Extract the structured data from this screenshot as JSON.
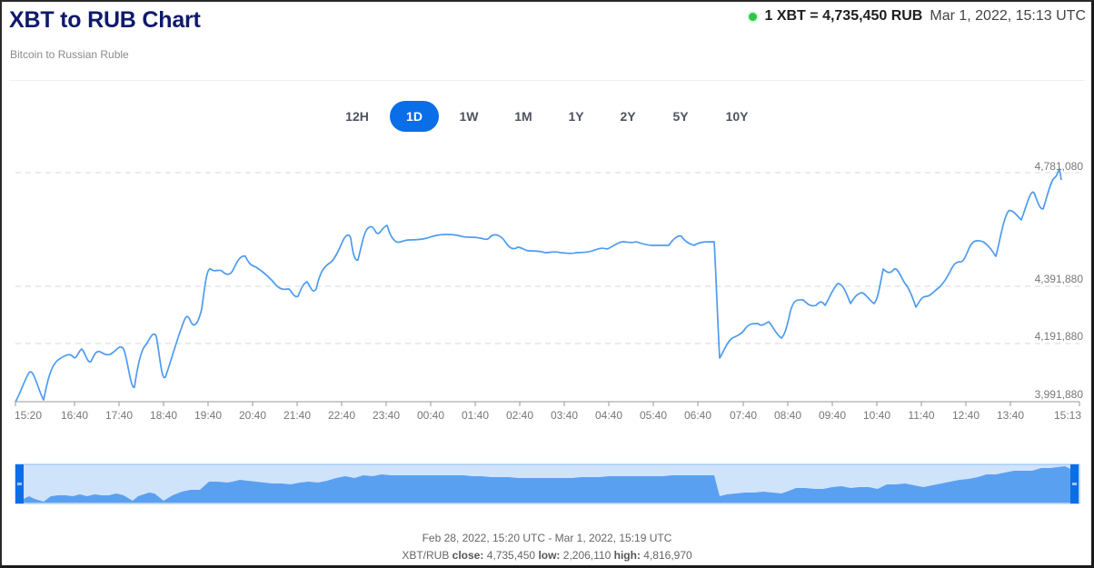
{
  "header": {
    "title": "XBT to RUB Chart",
    "subtitle": "Bitcoin to Russian Ruble",
    "rate_text": "1 XBT = 4,735,450 RUB",
    "rate_time": "Mar 1, 2022, 15:13 UTC",
    "status_color": "#2cc84a"
  },
  "ranges": [
    {
      "label": "12H",
      "active": false
    },
    {
      "label": "1D",
      "active": true
    },
    {
      "label": "1W",
      "active": false
    },
    {
      "label": "1M",
      "active": false
    },
    {
      "label": "1Y",
      "active": false
    },
    {
      "label": "2Y",
      "active": false
    },
    {
      "label": "5Y",
      "active": false
    },
    {
      "label": "10Y",
      "active": false
    }
  ],
  "footer": {
    "range_text": "Feb 28, 2022, 15:20 UTC - Mar 1, 2022, 15:19 UTC",
    "pair": "XBT/RUB",
    "close_label": "close:",
    "close_value": "4,735,450",
    "low_label": "low:",
    "low_value": "2,206,110",
    "high_label": "high:",
    "high_value": "4,816,970"
  },
  "colors": {
    "line": "#4d9bf0",
    "accent": "#0a6ee8",
    "navigator_bg": "#cfe3fb",
    "navigator_fill": "#5aa0f0",
    "title": "#0f1a6b"
  },
  "chart_data": {
    "type": "line",
    "title": "XBT to RUB Chart",
    "subtitle": "Bitcoin to Russian Ruble",
    "xlabel": "",
    "ylabel": "",
    "y_ticks": [
      3991880,
      4191880,
      4391880,
      4781080
    ],
    "y_tick_labels": [
      "3,991,880",
      "4,191,880",
      "4,391,880",
      "4,781,080"
    ],
    "ylim": [
      3991880,
      4781080
    ],
    "x_tick_labels": [
      "15:20",
      "16:40",
      "17:40",
      "18:40",
      "19:40",
      "20:40",
      "21:40",
      "22:40",
      "23:40",
      "00:40",
      "01:40",
      "02:40",
      "03:40",
      "04:40",
      "05:40",
      "06:40",
      "07:40",
      "08:40",
      "09:40",
      "10:40",
      "11:40",
      "12:40",
      "13:40",
      "15:13"
    ],
    "grid": "horizontal dashed",
    "legend": "none",
    "series": [
      {
        "name": "XBT/RUB",
        "x": [
          "15:20",
          "15:35",
          "15:50",
          "16:05",
          "16:20",
          "16:40",
          "16:55",
          "17:10",
          "17:25",
          "17:40",
          "17:55",
          "18:10",
          "18:25",
          "18:40",
          "18:55",
          "19:10",
          "19:25",
          "19:40",
          "19:55",
          "20:10",
          "20:25",
          "20:40",
          "20:55",
          "21:10",
          "21:25",
          "21:40",
          "21:55",
          "22:10",
          "22:25",
          "22:40",
          "22:55",
          "23:10",
          "23:25",
          "23:40",
          "00:00",
          "00:20",
          "00:40",
          "01:00",
          "01:20",
          "01:40",
          "02:00",
          "02:20",
          "02:40",
          "03:00",
          "03:20",
          "03:40",
          "04:00",
          "04:20",
          "04:40",
          "05:00",
          "05:20",
          "05:40",
          "06:00",
          "06:20",
          "06:40",
          "06:55",
          "07:00",
          "07:20",
          "07:40",
          "08:00",
          "08:20",
          "08:40",
          "09:00",
          "09:20",
          "09:40",
          "10:00",
          "10:20",
          "10:40",
          "11:00",
          "11:20",
          "11:40",
          "12:00",
          "12:20",
          "12:40",
          "13:00",
          "13:20",
          "13:40",
          "14:00",
          "14:20",
          "14:40",
          "15:00",
          "15:13"
        ],
        "values": [
          3991880,
          4080000,
          3995000,
          4150000,
          4140000,
          4165000,
          4170000,
          4170000,
          4040000,
          4195000,
          4210000,
          4060000,
          4270000,
          4310000,
          4280000,
          4480000,
          4470000,
          4475000,
          4530000,
          4460000,
          4430000,
          4390000,
          4390000,
          4455000,
          4500000,
          4570000,
          4500000,
          4595000,
          4610000,
          4590000,
          4575000,
          4570000,
          4580000,
          4585000,
          4580000,
          4575000,
          4570000,
          4560000,
          4555000,
          4545000,
          4540000,
          4545000,
          4540000,
          4540000,
          4555000,
          4560000,
          4560000,
          4565000,
          4565000,
          4580000,
          4580000,
          4570000,
          4570000,
          4570000,
          4570000,
          4570000,
          4135000,
          4205000,
          4230000,
          4220000,
          4185000,
          4285000,
          4275000,
          4290000,
          4265000,
          4330000,
          4290000,
          4340000,
          4300000,
          4365000,
          4345000,
          4290000,
          4350000,
          4380000,
          4440000,
          4525000,
          4545000,
          4610000,
          4640000,
          4690000,
          4720000,
          4735450
        ]
      }
    ],
    "summary": {
      "range": "Feb 28, 2022, 15:20 UTC - Mar 1, 2022, 15:19 UTC",
      "close": 4735450,
      "low": 2206110,
      "high": 4816970,
      "current": 4735450
    }
  }
}
